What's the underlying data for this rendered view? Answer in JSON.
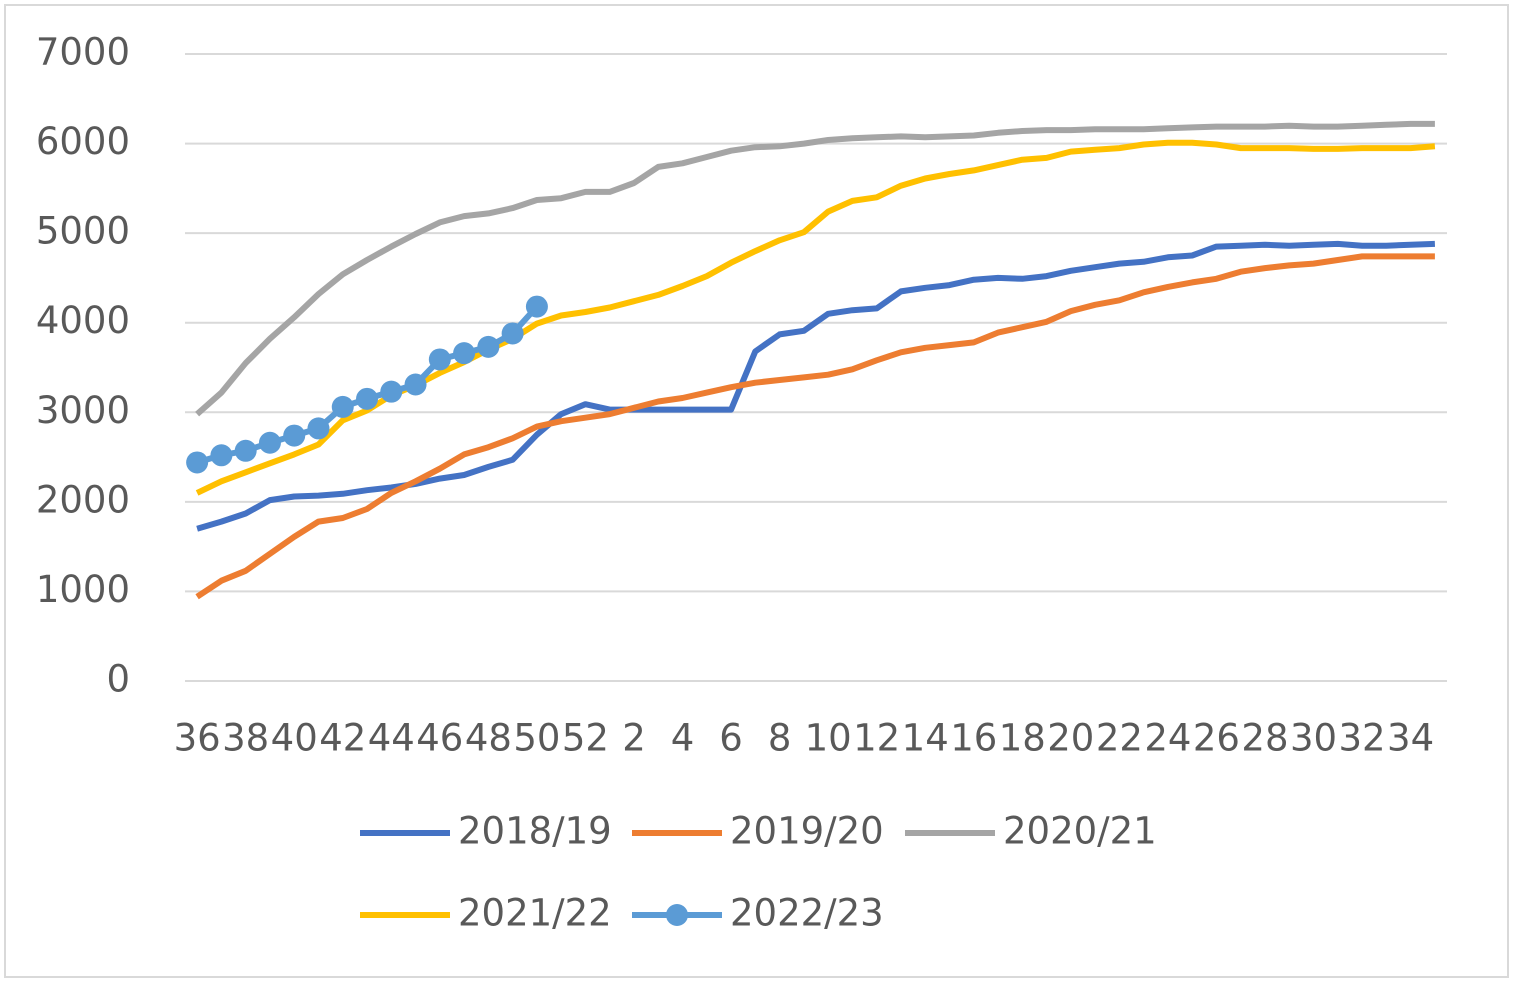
{
  "chart_data": {
    "type": "line",
    "categories": [
      "36",
      null,
      "38",
      null,
      "40",
      null,
      "42",
      null,
      "44",
      null,
      "46",
      null,
      "48",
      null,
      "50",
      null,
      "52",
      null,
      "2",
      null,
      "4",
      null,
      "6",
      null,
      "8",
      null,
      "10",
      null,
      "12",
      null,
      "14",
      null,
      "16",
      null,
      "18",
      null,
      "20",
      null,
      "22",
      null,
      "24",
      null,
      "26",
      null,
      "28",
      null,
      "30",
      null,
      "32",
      null,
      "34",
      null
    ],
    "series": [
      {
        "name": "2018/19",
        "color": "#4472c4",
        "values": [
          1700,
          1780,
          1870,
          2020,
          2060,
          2070,
          2090,
          2130,
          2160,
          2200,
          2260,
          2300,
          2390,
          2470,
          2750,
          2980,
          3090,
          3030,
          3030,
          3030,
          3030,
          3030,
          3030,
          3680,
          3870,
          3910,
          4100,
          4140,
          4160,
          4350,
          4390,
          4420,
          4480,
          4500,
          4490,
          4520,
          4580,
          4620,
          4660,
          4680,
          4730,
          4750,
          4850,
          4860,
          4870,
          4860,
          4870,
          4880,
          4860,
          4860,
          4870,
          4880
        ]
      },
      {
        "name": "2019/20",
        "color": "#ed7d31",
        "values": [
          940,
          1120,
          1230,
          1420,
          1610,
          1780,
          1820,
          1920,
          2100,
          2230,
          2370,
          2530,
          2610,
          2710,
          2840,
          2900,
          2940,
          2980,
          3050,
          3120,
          3160,
          3220,
          3280,
          3330,
          3360,
          3390,
          3420,
          3480,
          3580,
          3670,
          3720,
          3750,
          3780,
          3890,
          3950,
          4010,
          4130,
          4200,
          4250,
          4340,
          4400,
          4450,
          4490,
          4570,
          4610,
          4640,
          4660,
          4700,
          4740,
          4740,
          4740,
          4740
        ]
      },
      {
        "name": "2020/21",
        "color": "#a5a5a5",
        "values": [
          2980,
          3220,
          3550,
          3820,
          4060,
          4320,
          4540,
          4700,
          4850,
          4990,
          5120,
          5190,
          5220,
          5280,
          5370,
          5390,
          5460,
          5460,
          5560,
          5740,
          5780,
          5850,
          5920,
          5960,
          5970,
          6000,
          6040,
          6060,
          6070,
          6080,
          6070,
          6080,
          6090,
          6120,
          6140,
          6150,
          6150,
          6160,
          6160,
          6160,
          6170,
          6180,
          6190,
          6190,
          6190,
          6200,
          6190,
          6190,
          6200,
          6210,
          6220,
          6220
        ]
      },
      {
        "name": "2021/22",
        "color": "#ffc000",
        "values": [
          2100,
          2230,
          2330,
          2430,
          2530,
          2640,
          2910,
          3020,
          3190,
          3300,
          3440,
          3560,
          3700,
          3820,
          3990,
          4080,
          4120,
          4170,
          4240,
          4310,
          4410,
          4520,
          4670,
          4800,
          4920,
          5010,
          5240,
          5360,
          5400,
          5530,
          5610,
          5660,
          5700,
          5760,
          5820,
          5840,
          5910,
          5930,
          5950,
          5990,
          6010,
          6010,
          5990,
          5950,
          5950,
          5950,
          5940,
          5940,
          5950,
          5950,
          5950,
          5970
        ]
      },
      {
        "name": "2022/23",
        "color": "#5b9bd5",
        "marker": true,
        "values": [
          2440,
          2520,
          2570,
          2660,
          2740,
          2820,
          3060,
          3150,
          3230,
          3310,
          3590,
          3660,
          3730,
          3880,
          4180,
          null,
          null,
          null,
          null,
          null,
          null,
          null,
          null,
          null,
          null,
          null,
          null,
          null,
          null,
          null,
          null,
          null,
          null,
          null,
          null,
          null,
          null,
          null,
          null,
          null,
          null,
          null,
          null,
          null,
          null,
          null,
          null,
          null,
          null,
          null,
          null,
          null
        ]
      }
    ],
    "ylim": [
      0,
      7000
    ],
    "yticks": [
      0,
      1000,
      2000,
      3000,
      4000,
      5000,
      6000,
      7000
    ],
    "grid": true,
    "legend": "bottom"
  }
}
